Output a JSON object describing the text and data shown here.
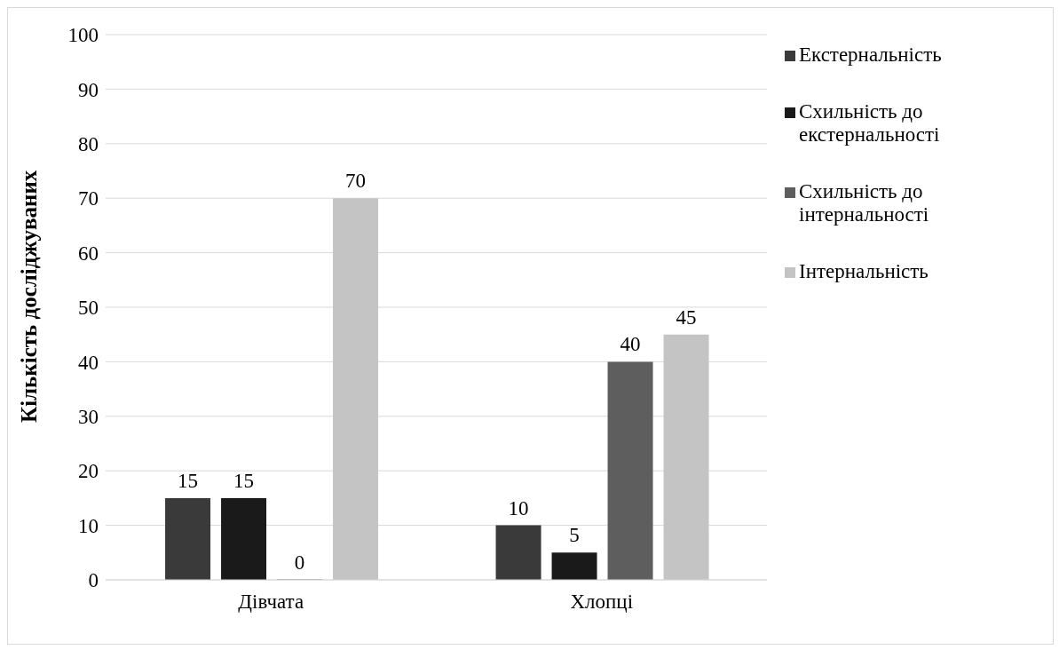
{
  "chart_data": {
    "type": "bar",
    "ylabel": "Кількість досліджуваних",
    "categories": [
      "Дівчата",
      "Хлопці"
    ],
    "series": [
      {
        "name": "Екстернальність",
        "color": "#3a3a3a",
        "values": [
          15,
          10
        ]
      },
      {
        "name": "Схильність до екстернальності",
        "color": "#1a1a1a",
        "values": [
          15,
          5
        ]
      },
      {
        "name": "Схильність до інтернальності",
        "color": "#5e5e5e",
        "values": [
          0,
          40
        ]
      },
      {
        "name": "Інтернальність",
        "color": "#c4c4c4",
        "values": [
          70,
          45
        ]
      }
    ],
    "ylim": [
      0,
      100
    ],
    "yticks": [
      0,
      10,
      20,
      30,
      40,
      50,
      60,
      70,
      80,
      90,
      100
    ],
    "grid": "y",
    "legend": "right",
    "data_labels": true
  }
}
